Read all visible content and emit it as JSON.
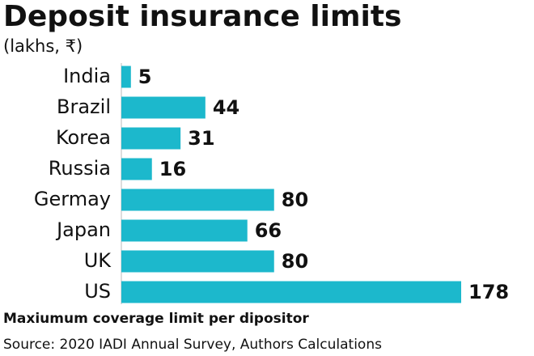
{
  "chart_data": {
    "type": "bar",
    "title": "Deposit insurance limits",
    "subtitle": "(lakhs, ₹)",
    "categories": [
      "India",
      "Brazil",
      "Korea",
      "Russia",
      "Germay",
      "Japan",
      "UK",
      "US"
    ],
    "values": [
      5,
      44,
      31,
      16,
      80,
      66,
      80,
      178
    ],
    "color": "#1cb8cc",
    "footnote": "Maxiumum coverage limit per dipositor",
    "source": "Source: 2020 IADI Annual Survey, Authors Calculations"
  }
}
